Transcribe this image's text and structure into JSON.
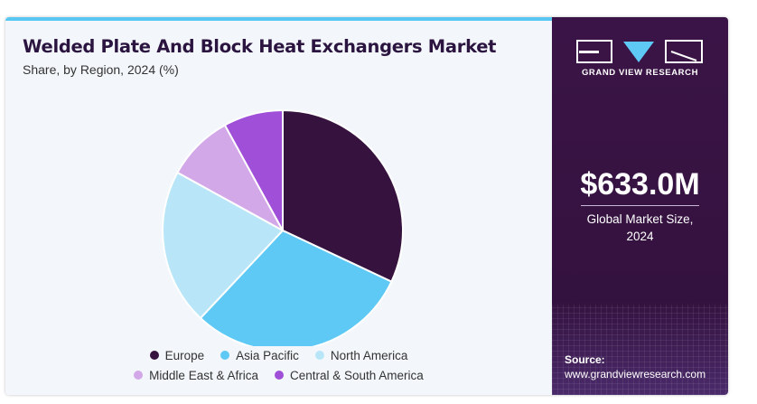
{
  "header": {
    "title": "Welded Plate And Block Heat Exchangers Market",
    "subtitle": "Share, by Region, 2024 (%)"
  },
  "chart_data": {
    "type": "pie",
    "categories": [
      "Europe",
      "Asia Pacific",
      "North America",
      "Middle East & Africa",
      "Central & South America"
    ],
    "values": [
      32,
      30,
      21,
      9,
      8
    ],
    "colors": [
      "#36123f",
      "#5ec9f5",
      "#b8e6f8",
      "#d3a8e8",
      "#a04fd8"
    ],
    "start": "12 o'clock, clockwise",
    "legend_position": "bottom"
  },
  "legend": {
    "rows": [
      [
        "Europe",
        "Asia Pacific",
        "North America"
      ],
      [
        "Middle East & Africa",
        "Central & South America"
      ]
    ]
  },
  "side": {
    "brand": "GRAND VIEW RESEARCH",
    "market_size": "$633.0M",
    "market_label_line1": "Global Market Size,",
    "market_label_line2": "2024",
    "source_label": "Source:",
    "source_url": "www.grandviewresearch.com"
  }
}
